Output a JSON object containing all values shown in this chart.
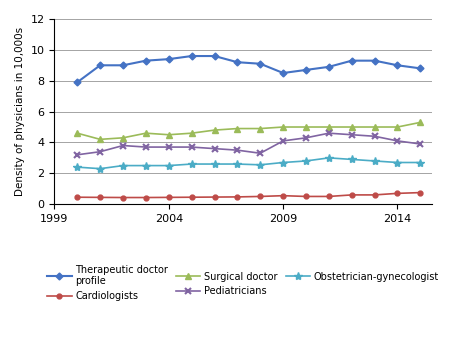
{
  "years": [
    2000,
    2001,
    2002,
    2003,
    2004,
    2005,
    2006,
    2007,
    2008,
    2009,
    2010,
    2011,
    2012,
    2013,
    2014,
    2015
  ],
  "therapeutic": [
    7.9,
    9.0,
    9.0,
    9.3,
    9.4,
    9.6,
    9.6,
    9.2,
    9.1,
    8.5,
    8.7,
    8.9,
    9.3,
    9.3,
    9.0,
    8.8
  ],
  "cardiologists": [
    0.45,
    0.44,
    0.43,
    0.43,
    0.44,
    0.45,
    0.46,
    0.47,
    0.5,
    0.55,
    0.5,
    0.5,
    0.6,
    0.6,
    0.7,
    0.75
  ],
  "surgical": [
    4.6,
    4.2,
    4.3,
    4.6,
    4.5,
    4.6,
    4.8,
    4.9,
    4.9,
    5.0,
    5.0,
    5.0,
    5.0,
    5.0,
    5.0,
    5.3
  ],
  "pediatricians": [
    3.2,
    3.4,
    3.8,
    3.7,
    3.7,
    3.7,
    3.6,
    3.5,
    3.3,
    4.1,
    4.3,
    4.6,
    4.5,
    4.4,
    4.1,
    3.9
  ],
  "obgyn": [
    2.4,
    2.3,
    2.5,
    2.5,
    2.5,
    2.6,
    2.6,
    2.6,
    2.55,
    2.7,
    2.8,
    3.0,
    2.9,
    2.8,
    2.7,
    2.7
  ],
  "therapeutic_color": "#4472C4",
  "cardiologists_color": "#BE4B48",
  "surgical_color": "#9BBB59",
  "pediatricians_color": "#8064A2",
  "obgyn_color": "#4BACC6",
  "ylabel": "Density of physicians in 10,000s",
  "xlim": [
    1999,
    2015.5
  ],
  "ylim": [
    0,
    12
  ],
  "yticks": [
    0,
    2,
    4,
    6,
    8,
    10,
    12
  ],
  "xticks": [
    1999,
    2004,
    2009,
    2014
  ],
  "legend_labels": [
    "Therapeutic doctor\nprofile",
    "Cardiologists",
    "Surgical doctor",
    "Pediatricians",
    "Obstetrician-gynecologist"
  ]
}
